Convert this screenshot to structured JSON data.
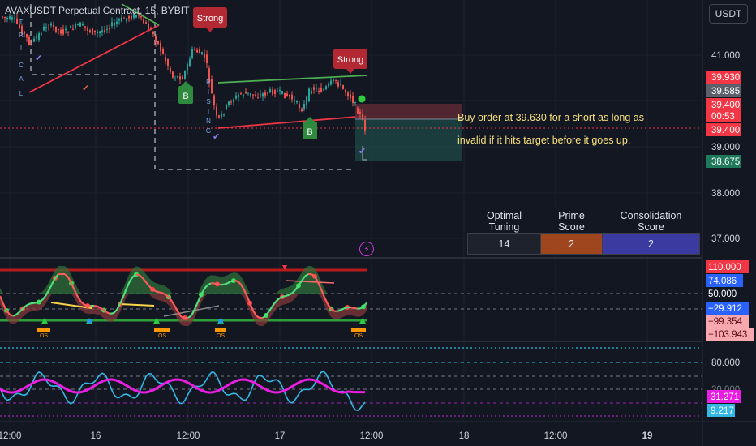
{
  "header": {
    "symbol_title": "AVAXUSDT Perpetual Contract, 15, BYBIT",
    "currency": "USDT"
  },
  "chart_data": [
    {
      "type": "candlestick",
      "panel": "price",
      "price_axis_ticks": [
        "41.000",
        "39.000",
        "38.000",
        "37.000"
      ],
      "price_labels": [
        {
          "text": "39.930",
          "bg": "#f23645"
        },
        {
          "text": "39.585",
          "bg": "#5d606b"
        },
        {
          "text": "39.400",
          "bg": "#f23645"
        },
        {
          "text": "00:53",
          "bg": "#f23645"
        },
        {
          "text": "39.400",
          "bg": "#f23645"
        },
        {
          "text": "38.675",
          "bg": "#1f7a5c"
        }
      ],
      "ylim": [
        36.4,
        42.3
      ],
      "signals": [
        {
          "text": "Strong",
          "kind": "sell"
        },
        {
          "text": "Strong",
          "kind": "sell"
        },
        {
          "text": "B",
          "kind": "buy"
        },
        {
          "text": "B",
          "kind": "buy"
        }
      ],
      "vertical_text_1": [
        "T",
        "R",
        "I",
        "C",
        "A",
        "L"
      ],
      "vertical_text_2": [
        "R",
        "I",
        "S",
        "I",
        "N",
        "G"
      ],
      "marks": {
        "check": "✔",
        "down_arrow": "▼"
      },
      "annotation_lines": [
        "Buy order at 39.630 for a short as long as",
        "invalid if it hits target before it goes up."
      ],
      "table": {
        "headers": [
          "Optimal Tuning",
          "Prime Score",
          "Consolidation  Score"
        ],
        "values": [
          "14",
          "2",
          "2"
        ],
        "colors": [
          "#1e222d",
          "#a0461f",
          "#3a3aa0"
        ]
      }
    },
    {
      "type": "line",
      "panel": "oscillator-1",
      "axis_labels": [
        {
          "text": "110.000",
          "bg": "#f23645"
        },
        {
          "text": "74.086",
          "bg": "#2962ff"
        },
        {
          "text": "50.000",
          "bg": "none"
        },
        {
          "text": "−29.912",
          "bg": "#2962ff"
        },
        {
          "text": "−99.354",
          "bg": "#f7a7ae"
        },
        {
          "text": "−103.943",
          "bg": "#f7a7ae"
        }
      ],
      "os_label": "OS"
    },
    {
      "type": "line",
      "panel": "oscillator-2",
      "axis_labels": [
        {
          "text": "80.000",
          "bg": "none"
        },
        {
          "text": "31.271",
          "bg": "#e91ee0"
        },
        {
          "text": "9.217",
          "bg": "#33b8e6"
        }
      ],
      "partial_label": "20.000"
    }
  ],
  "time_axis": [
    "12:00",
    "16",
    "12:00",
    "17",
    "12:00",
    "18",
    "12:00",
    "19"
  ],
  "colors": {
    "bg": "#131722",
    "up": "#26a69a",
    "down": "#ef5350",
    "green_line": "#4caf50",
    "red_line": "#f23645",
    "cyan": "#33b8e6",
    "magenta": "#e91ee0"
  }
}
